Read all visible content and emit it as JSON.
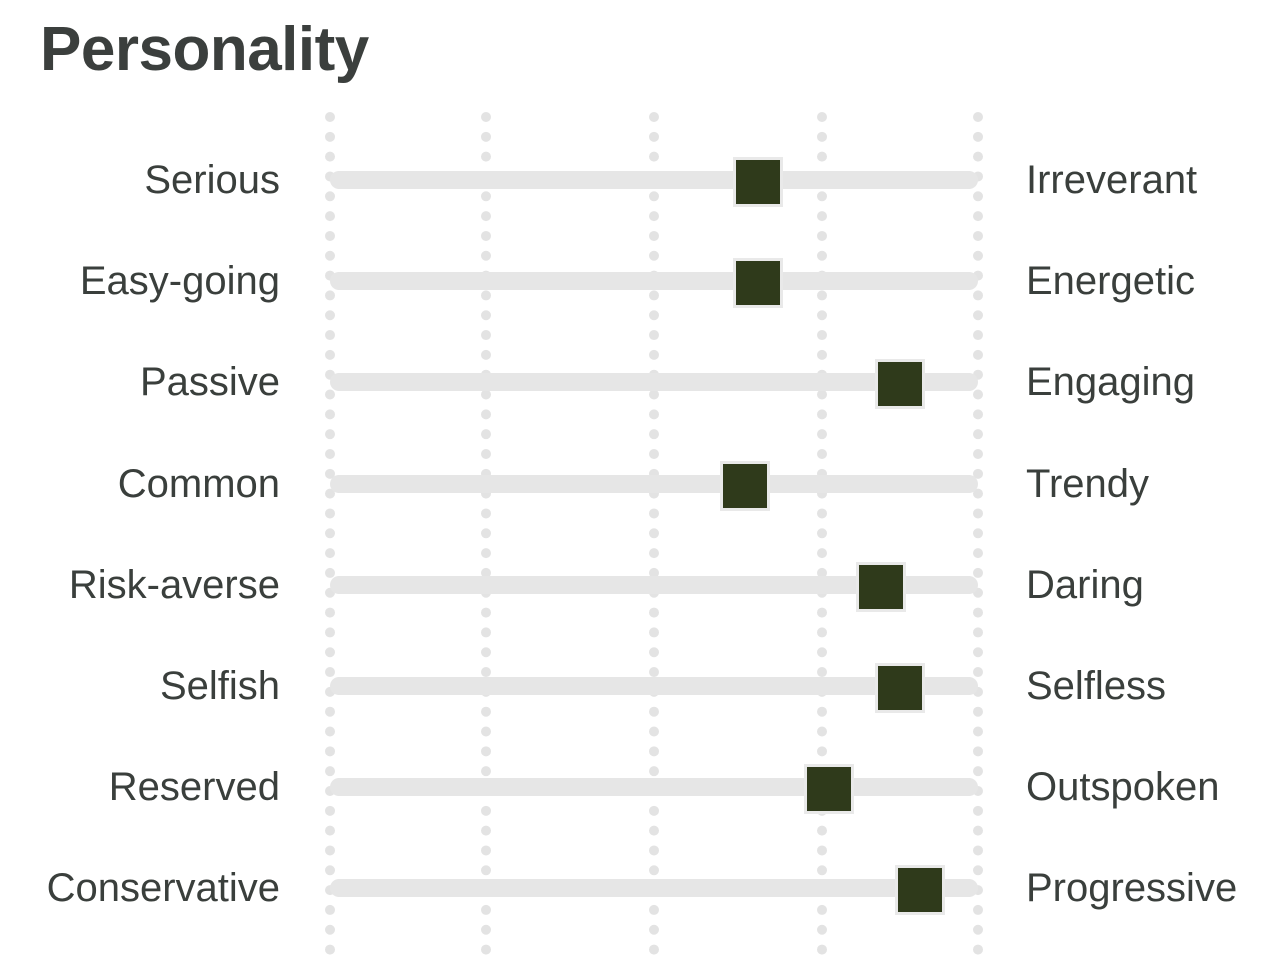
{
  "title": "Personality",
  "scale": {
    "min": 0,
    "max": 100,
    "gridlines": [
      0,
      24,
      50,
      76,
      100
    ]
  },
  "colors": {
    "marker": "#2f3a1b",
    "track": "#e6e6e6",
    "grid": "#e3e3e3",
    "text": "#3a3f3c"
  },
  "traits": [
    {
      "left": "Serious",
      "right": "Irreverant",
      "value": 66
    },
    {
      "left": "Easy-going",
      "right": "Energetic",
      "value": 66
    },
    {
      "left": "Passive",
      "right": "Engaging",
      "value": 88
    },
    {
      "left": "Common",
      "right": "Trendy",
      "value": 64
    },
    {
      "left": "Risk-averse",
      "right": "Daring",
      "value": 85
    },
    {
      "left": "Selfish",
      "right": "Selfless",
      "value": 88
    },
    {
      "left": "Reserved",
      "right": "Outspoken",
      "value": 77
    },
    {
      "left": "Conservative",
      "right": "Progressive",
      "value": 91
    }
  ]
}
